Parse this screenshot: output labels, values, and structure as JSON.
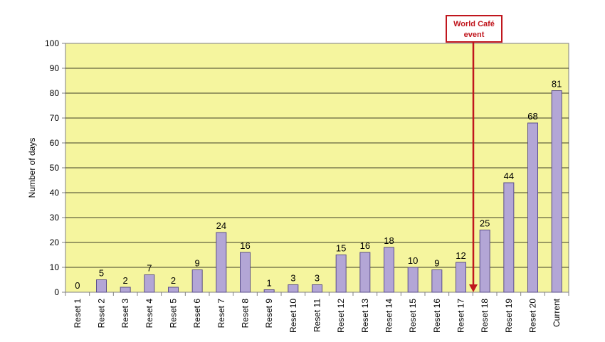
{
  "chart_data": {
    "type": "bar",
    "categories": [
      "Reset 1",
      "Reset 2",
      "Reset 3",
      "Reset 4",
      "Reset 5",
      "Reset 6",
      "Reset 7",
      "Reset 8",
      "Reset 9",
      "Reset 10",
      "Reset 11",
      "Reset 12",
      "Reset 13",
      "Reset 14",
      "Reset 15",
      "Reset 16",
      "Reset 17",
      "Reset 18",
      "Reset 19",
      "Reset 20",
      "Current"
    ],
    "values": [
      0,
      5,
      2,
      7,
      2,
      9,
      24,
      16,
      1,
      3,
      3,
      15,
      16,
      18,
      10,
      9,
      12,
      25,
      44,
      68,
      81
    ],
    "ylabel": "Number of days",
    "ylim": [
      0,
      100
    ],
    "yticks": [
      0,
      10,
      20,
      30,
      40,
      50,
      60,
      70,
      80,
      90,
      100
    ],
    "grid": true,
    "plot_background": "#F5F59E",
    "bar_color": "#B3A6D6",
    "bar_edge_color": "#5A4E8A",
    "annotation": {
      "line1": "World Café",
      "line2": "event",
      "after_category": "Reset 17",
      "color": "#C0161D"
    }
  }
}
